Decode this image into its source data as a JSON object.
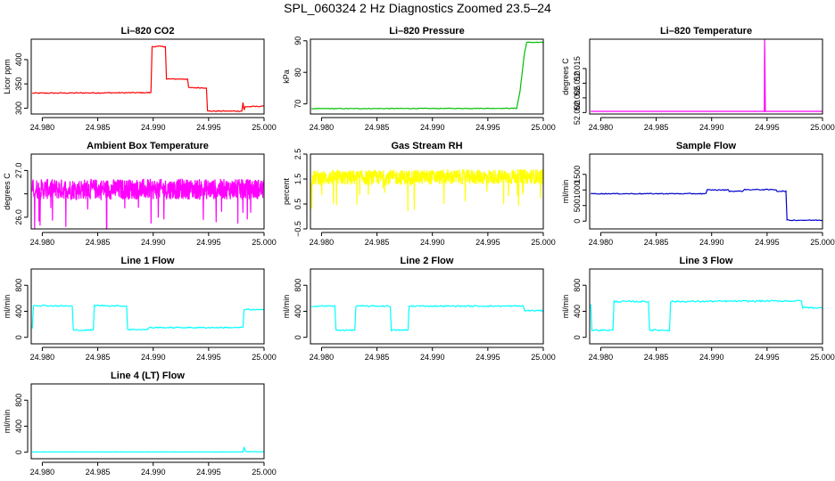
{
  "page": {
    "title": "SPL_060324  2 Hz Diagnostics Zoomed 23.5–24"
  },
  "chart_data": [
    {
      "type": "line",
      "title": "Li–820 CO2",
      "xlabel": "",
      "ylabel": "Licor ppm",
      "color": "#ff0000",
      "xlim": [
        24.979,
        25.0
      ],
      "ylim": [
        288,
        442
      ],
      "yticks": [
        300,
        350,
        400
      ],
      "xticks": [
        24.98,
        24.985,
        24.99,
        24.995,
        25.0
      ],
      "x": [
        24.9791,
        24.9898,
        24.9899,
        24.9911,
        24.9912,
        24.9931,
        24.9932,
        24.9948,
        24.9949,
        24.998,
        24.9981,
        24.9982,
        24.9983,
        25.0
      ],
      "y": [
        331,
        332,
        427,
        427,
        360,
        360,
        342,
        342,
        294,
        294,
        312,
        296,
        303,
        304
      ],
      "noise": 1.0
    },
    {
      "type": "line",
      "title": "Li–820 Pressure",
      "xlabel": "",
      "ylabel": "kPa",
      "color": "#00c000",
      "xlim": [
        24.979,
        25.0
      ],
      "ylim": [
        66.8,
        90.5
      ],
      "yticks": [
        70,
        80,
        90
      ],
      "xticks": [
        24.98,
        24.985,
        24.99,
        24.995,
        25.0
      ],
      "x": [
        24.9791,
        24.9975,
        24.9976,
        24.9979,
        24.9981,
        24.9983,
        24.9985,
        25.0
      ],
      "y": [
        68.5,
        68.6,
        68.6,
        74,
        80,
        86,
        89.5,
        89.5
      ],
      "noise": 0.1
    },
    {
      "type": "line",
      "title": "Li–820 Temperature",
      "xlabel": "",
      "ylabel": "degrees C",
      "color": "#ff00ff",
      "xlim": [
        24.979,
        25.0
      ],
      "ylim": [
        51.9995,
        52.025
      ],
      "yticks": [
        52.0,
        52.005,
        52.01,
        52.015
      ],
      "ytick_labels": [
        "52.000",
        "52.005",
        "52.010",
        "52.015"
      ],
      "xticks": [
        24.98,
        24.985,
        24.99,
        24.995,
        25.0
      ],
      "x": [
        24.9791,
        24.99475,
        24.99478,
        24.99481,
        24.99484,
        25.0
      ],
      "y": [
        52.0004,
        52.0004,
        52.025,
        52.015,
        52.0004,
        52.0004
      ],
      "noise": 0.0
    },
    {
      "type": "line",
      "title": "Ambient Box Temperature",
      "xlabel": "",
      "ylabel": "degrees C",
      "color": "#ff00ff",
      "xlim": [
        24.979,
        25.0
      ],
      "ylim": [
        25.75,
        27.35
      ],
      "yticks": [
        26.0,
        26.5,
        27.0
      ],
      "ytick_labels": [
        "26.0",
        "",
        "27.0"
      ],
      "xticks": [
        24.98,
        24.985,
        24.99,
        24.995,
        25.0
      ],
      "x": [
        24.9791,
        25.0
      ],
      "y": [
        26.6,
        26.6
      ],
      "noise": 0.22,
      "noisy": true
    },
    {
      "type": "line",
      "title": "Gas Stream RH",
      "xlabel": "",
      "ylabel": "percent",
      "color": "#ffff00",
      "xlim": [
        24.979,
        25.0
      ],
      "ylim": [
        -0.5,
        2.5
      ],
      "yticks": [
        -0.5,
        0.5,
        1.5,
        2.5
      ],
      "ytick_labels": [
        "−0.5",
        "0.5",
        "1.5",
        "2.5"
      ],
      "xticks": [
        24.98,
        24.985,
        24.99,
        24.995,
        25.0
      ],
      "x": [
        24.9791,
        25.0
      ],
      "y": [
        1.55,
        1.6
      ],
      "noise": 0.3,
      "noisy": true
    },
    {
      "type": "line",
      "title": "Sample Flow",
      "xlabel": "",
      "ylabel": "ml/min",
      "color": "#0000cc",
      "xlim": [
        24.979,
        25.0
      ],
      "ylim": [
        -250,
        2150
      ],
      "yticks": [
        0,
        500,
        1000,
        1500
      ],
      "xticks": [
        24.98,
        24.985,
        24.99,
        24.995,
        25.0
      ],
      "x": [
        24.9791,
        24.9895,
        24.9896,
        24.9915,
        24.9916,
        24.9928,
        24.9929,
        24.9958,
        24.9959,
        24.9967,
        24.9968,
        25.0
      ],
      "y": [
        880,
        880,
        1000,
        1000,
        960,
        960,
        1010,
        1010,
        960,
        960,
        30,
        30
      ],
      "noise": 14.0
    },
    {
      "type": "line",
      "title": "Line 1 Flow",
      "xlabel": "",
      "ylabel": "ml/min",
      "color": "#00ffff",
      "xlim": [
        24.979,
        25.0
      ],
      "ylim": [
        -100,
        1050
      ],
      "yticks": [
        0,
        400,
        800
      ],
      "xticks": [
        24.98,
        24.985,
        24.99,
        24.995,
        25.0
      ],
      "x": [
        24.9791,
        24.9792,
        24.9827,
        24.9828,
        24.9846,
        24.9847,
        24.9876,
        24.9877,
        24.9895,
        24.9896,
        24.9981,
        24.9982,
        25.0
      ],
      "y": [
        140,
        490,
        480,
        110,
        110,
        490,
        480,
        120,
        120,
        150,
        150,
        430,
        420
      ],
      "noise": 10.0
    },
    {
      "type": "line",
      "title": "Line 2 Flow",
      "xlabel": "",
      "ylabel": "ml/min",
      "color": "#00ffff",
      "xlim": [
        24.979,
        25.0
      ],
      "ylim": [
        -100,
        1050
      ],
      "yticks": [
        0,
        400,
        800
      ],
      "xticks": [
        24.98,
        24.985,
        24.99,
        24.995,
        25.0
      ],
      "x": [
        24.9791,
        24.9812,
        24.9813,
        24.983,
        24.9831,
        24.9862,
        24.9863,
        24.9878,
        24.9879,
        24.9982,
        24.9983,
        25.0
      ],
      "y": [
        480,
        480,
        110,
        110,
        480,
        480,
        110,
        110,
        480,
        480,
        410,
        410
      ],
      "noise": 10.0
    },
    {
      "type": "line",
      "title": "Line 3 Flow",
      "xlabel": "",
      "ylabel": "ml/min",
      "color": "#00ffff",
      "xlim": [
        24.979,
        25.0
      ],
      "ylim": [
        -100,
        1050
      ],
      "yticks": [
        0,
        400,
        800
      ],
      "xticks": [
        24.98,
        24.985,
        24.99,
        24.995,
        25.0
      ],
      "x": [
        24.9791,
        24.9792,
        24.9811,
        24.9812,
        24.9843,
        24.9844,
        24.9862,
        24.9863,
        24.9981,
        24.9982,
        25.0
      ],
      "y": [
        510,
        110,
        110,
        550,
        550,
        110,
        110,
        550,
        560,
        460,
        450
      ],
      "noise": 12.0
    },
    {
      "type": "line",
      "title": "Line 4 (LT) Flow",
      "xlabel": "",
      "ylabel": "ml/min",
      "color": "#00ffff",
      "xlim": [
        24.979,
        25.0
      ],
      "ylim": [
        -100,
        1050
      ],
      "yticks": [
        0,
        400,
        800
      ],
      "xticks": [
        24.98,
        24.985,
        24.99,
        24.995,
        25.0
      ],
      "x": [
        24.9791,
        24.9981,
        24.9982,
        24.9983,
        24.9984,
        25.0
      ],
      "y": [
        5,
        5,
        80,
        20,
        8,
        8
      ],
      "noise": 2.0
    }
  ],
  "xtick_labels": [
    "24.980",
    "24.985",
    "24.990",
    "24.995",
    "25.000"
  ]
}
